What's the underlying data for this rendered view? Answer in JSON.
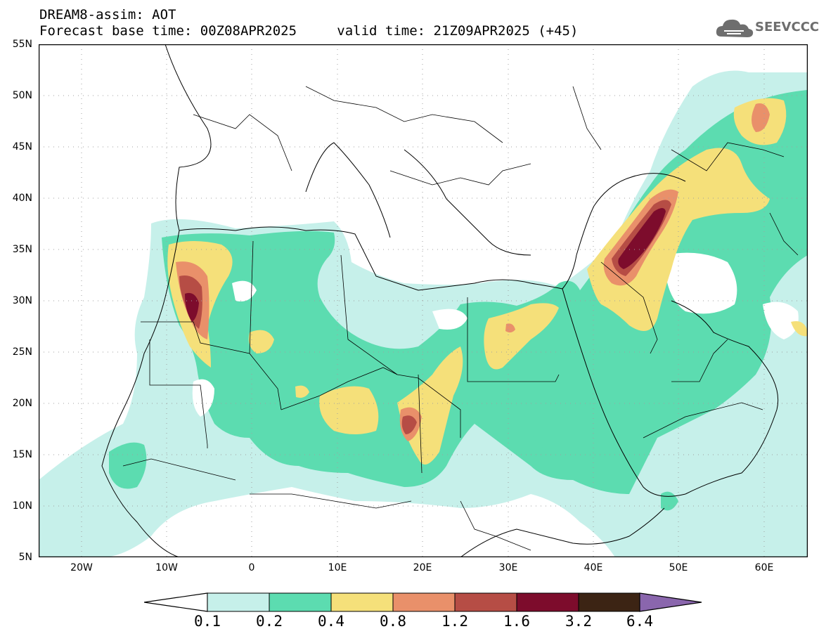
{
  "header": {
    "line1": "DREAM8-assim: AOT",
    "base_time": "Forecast base time: 00Z08APR2025",
    "valid_time": "valid time: 21Z09APR2025 (+45)"
  },
  "logo": {
    "text": "SEEVCCC"
  },
  "map": {
    "lat_labels": [
      "55N",
      "50N",
      "45N",
      "40N",
      "35N",
      "30N",
      "25N",
      "20N",
      "15N",
      "10N",
      "5N"
    ],
    "lon_labels": [
      "20W",
      "10W",
      "0",
      "10E",
      "20E",
      "30E",
      "40E",
      "50E",
      "60E"
    ],
    "lon_range": [
      -25,
      65
    ],
    "lat_range": [
      5,
      55
    ]
  },
  "colorbar": {
    "levels": [
      "0.1",
      "0.2",
      "0.4",
      "0.8",
      "1.2",
      "1.6",
      "3.2",
      "6.4"
    ],
    "colors": [
      "#ffffff",
      "#c6f0ea",
      "#5cdcb0",
      "#f5e07a",
      "#e9906a",
      "#b64d45",
      "#7d0c2c",
      "#3c2414",
      "#8a66ad"
    ]
  }
}
